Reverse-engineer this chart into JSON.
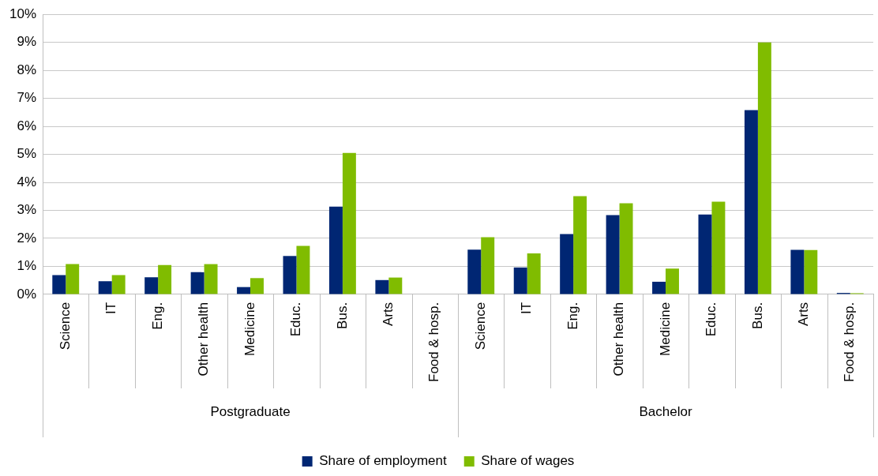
{
  "chart_data": {
    "type": "bar",
    "categories": [
      "Science",
      "IT",
      "Eng.",
      "Other health",
      "Medicine",
      "Educ.",
      "Bus.",
      "Arts",
      "Food & hosp.",
      "Science",
      "IT",
      "Eng.",
      "Other health",
      "Medicine",
      "Educ.",
      "Bus.",
      "Arts",
      "Food & hosp."
    ],
    "series": [
      {
        "name": "Share of employment",
        "color": "#002673",
        "values": [
          0.69,
          0.47,
          0.61,
          0.79,
          0.26,
          1.37,
          3.13,
          0.51,
          0,
          1.6,
          0.96,
          2.15,
          2.83,
          0.45,
          2.85,
          6.58,
          1.59,
          0.05
        ]
      },
      {
        "name": "Share of wages",
        "color": "#80bc00",
        "values": [
          1.08,
          0.69,
          1.05,
          1.08,
          0.58,
          1.73,
          5.05,
          0.6,
          0,
          2.04,
          1.46,
          3.51,
          3.25,
          0.92,
          3.31,
          9.0,
          1.58,
          0.04
        ]
      }
    ],
    "annotations": [
      "Postgraduate",
      "Bachelor"
    ],
    "ylim": [
      0,
      10
    ],
    "yticks": [
      {
        "value": 0,
        "label": "0%"
      },
      {
        "value": 1,
        "label": "1%"
      },
      {
        "value": 2,
        "label": "2%"
      },
      {
        "value": 3,
        "label": "3%"
      },
      {
        "value": 4,
        "label": "4%"
      },
      {
        "value": 5,
        "label": "5%"
      },
      {
        "value": 6,
        "label": "6%"
      },
      {
        "value": 7,
        "label": "7%"
      },
      {
        "value": 8,
        "label": "8%"
      },
      {
        "value": 9,
        "label": "9%"
      },
      {
        "value": 10,
        "label": "10%"
      }
    ],
    "grid": "y",
    "legend": "bottom"
  }
}
